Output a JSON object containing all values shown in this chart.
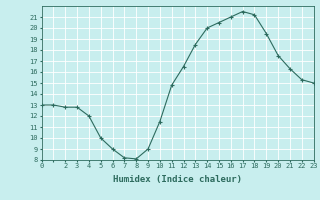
{
  "x": [
    0,
    1,
    2,
    3,
    4,
    5,
    6,
    7,
    8,
    9,
    10,
    11,
    12,
    13,
    14,
    15,
    16,
    17,
    18,
    19,
    20,
    21,
    22,
    23
  ],
  "y": [
    13.0,
    13.0,
    12.8,
    12.8,
    12.0,
    10.0,
    9.0,
    8.2,
    8.1,
    9.0,
    11.5,
    14.8,
    16.5,
    18.5,
    20.0,
    20.5,
    21.0,
    21.5,
    21.2,
    19.5,
    17.5,
    16.3,
    15.3,
    15.0
  ],
  "line_color": "#2d6b5e",
  "marker": "+",
  "marker_size": 3,
  "marker_linewidth": 0.8,
  "bg_color": "#c8eeee",
  "grid_color": "#ffffff",
  "axis_color": "#2d6b5e",
  "xlabel": "Humidex (Indice chaleur)",
  "xlim": [
    0,
    23
  ],
  "ylim": [
    8,
    22
  ],
  "yticks": [
    8,
    9,
    10,
    11,
    12,
    13,
    14,
    15,
    16,
    17,
    18,
    19,
    20,
    21
  ],
  "xticks": [
    0,
    1,
    2,
    3,
    4,
    5,
    6,
    7,
    8,
    9,
    10,
    11,
    12,
    13,
    14,
    15,
    16,
    17,
    18,
    19,
    20,
    21,
    22,
    23
  ],
  "xtick_labels": [
    "0",
    "",
    "2",
    "3",
    "4",
    "5",
    "6",
    "7",
    "8",
    "9",
    "10",
    "11",
    "12",
    "13",
    "14",
    "15",
    "16",
    "17",
    "18",
    "19",
    "20",
    "21",
    "22",
    "23"
  ],
  "ytick_labels": [
    "8",
    "9",
    "10",
    "11",
    "12",
    "13",
    "14",
    "15",
    "16",
    "17",
    "18",
    "19",
    "20",
    "21"
  ],
  "tick_font_size": 5,
  "label_font_size": 6.5,
  "linewidth": 0.8
}
